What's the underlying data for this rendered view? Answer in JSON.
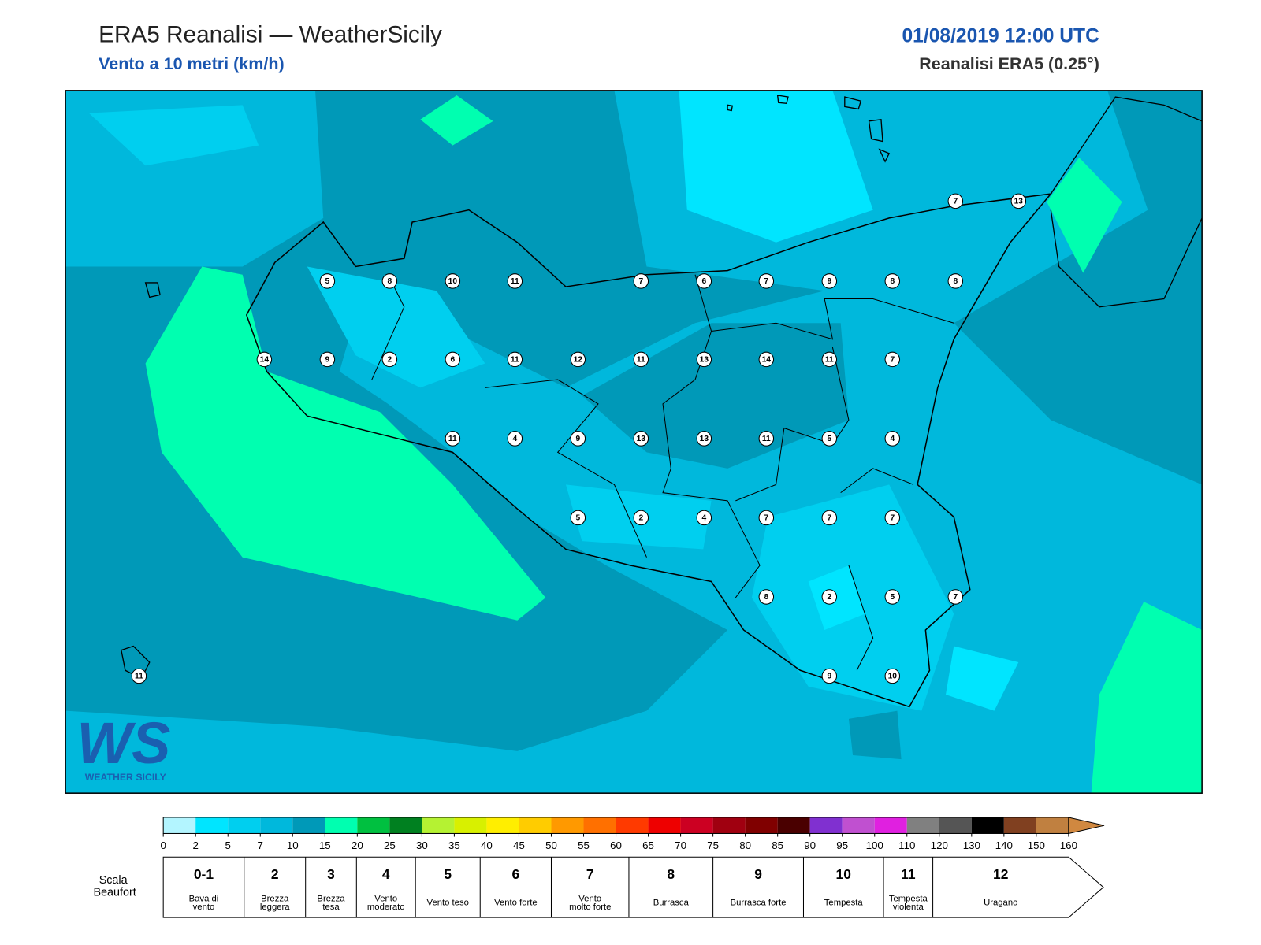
{
  "header": {
    "title": "ERA5 Reanalisi — WeatherSicily",
    "subtitle": "Vento a 10 metri (km/h)",
    "datetime": "01/08/2019 12:00 UTC",
    "source": "Reanalisi ERA5 (0.25°)"
  },
  "stations": [
    7,
    13,
    5,
    8,
    10,
    11,
    7,
    6,
    7,
    9,
    8,
    8,
    14,
    9,
    2,
    6,
    11,
    12,
    11,
    13,
    14,
    11,
    7,
    11,
    4,
    9,
    13,
    13,
    11,
    5,
    4,
    5,
    2,
    4,
    7,
    7,
    7,
    8,
    2,
    5,
    7,
    9,
    10,
    11
  ],
  "logo": {
    "mark": "WS",
    "text": "WEATHER SICILY"
  },
  "colorbar": {
    "ticks": [
      0,
      2,
      5,
      7,
      10,
      15,
      20,
      25,
      30,
      35,
      40,
      45,
      50,
      55,
      60,
      65,
      70,
      75,
      80,
      85,
      90,
      95,
      100,
      110,
      120,
      130,
      140,
      150,
      160
    ],
    "colors": [
      "#b3f5ff",
      "#00e5ff",
      "#00cfef",
      "#00b8dc",
      "#0099b8",
      "#00ffb0",
      "#00c040",
      "#008020",
      "#b5f232",
      "#d8f000",
      "#ffee00",
      "#ffcc00",
      "#ff9900",
      "#ff7000",
      "#ff3a00",
      "#ee0000",
      "#cc0022",
      "#a00010",
      "#800000",
      "#4a0000",
      "#8030d0",
      "#c050d0",
      "#e020e0",
      "#808080",
      "#555555",
      "#000000",
      "#804020",
      "#c08040"
    ],
    "extend_color": "#d08840"
  },
  "beaufort": {
    "label": "Scala Beaufort",
    "levels": [
      {
        "force": "0-1",
        "label": "Bava di vento"
      },
      {
        "force": "2",
        "label": "Brezza leggera"
      },
      {
        "force": "3",
        "label": "Brezza tesa"
      },
      {
        "force": "4",
        "label": "Vento moderato"
      },
      {
        "force": "5",
        "label": "Vento teso"
      },
      {
        "force": "6",
        "label": "Vento forte"
      },
      {
        "force": "7",
        "label": "Vento molto forte"
      },
      {
        "force": "8",
        "label": "Burrasca"
      },
      {
        "force": "9",
        "label": "Burrasca forte"
      },
      {
        "force": "10",
        "label": "Tempesta"
      },
      {
        "force": "11",
        "label": "Tempesta violenta"
      },
      {
        "force": "12",
        "label": "Uragano"
      }
    ]
  }
}
